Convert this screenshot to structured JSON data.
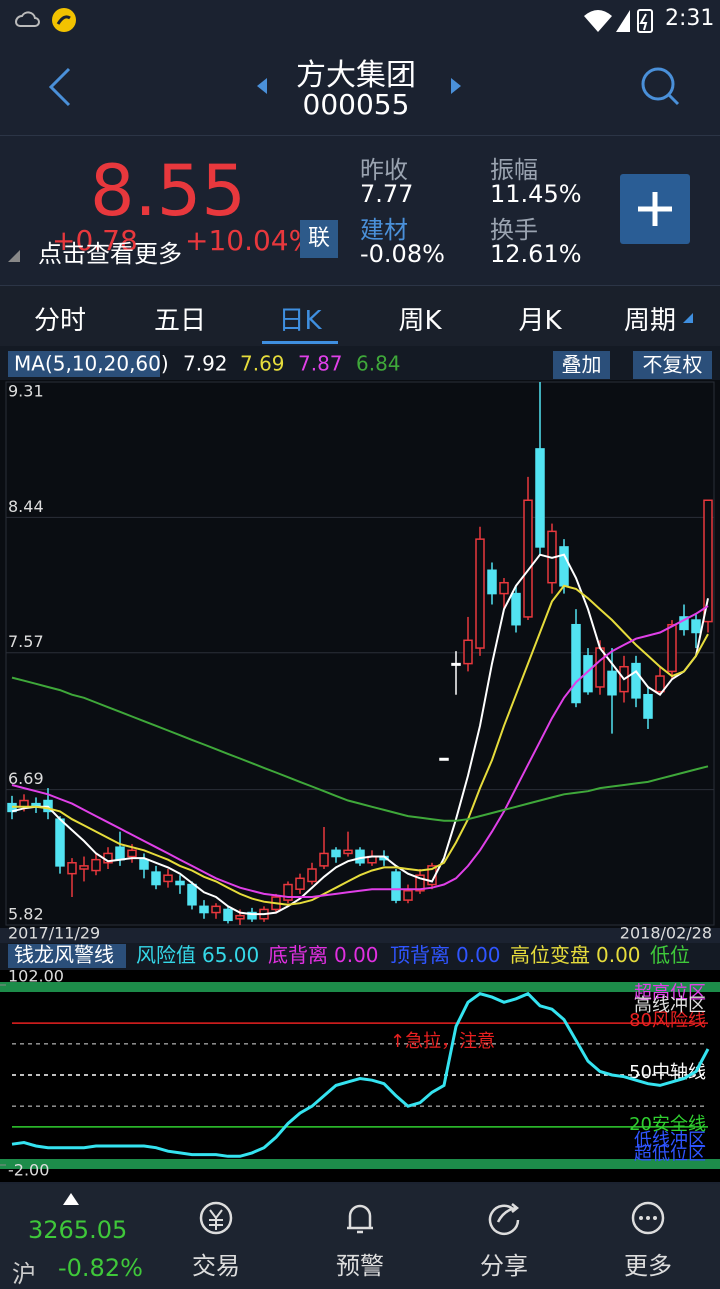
{
  "status_bar": {
    "time": "2:31"
  },
  "header": {
    "name": "方大集团",
    "code": "000055"
  },
  "quote": {
    "price": "8.55",
    "change": "+0.78",
    "change_pct": "+10.04%",
    "link": "联",
    "more": "点击查看更多",
    "stats": [
      {
        "label": "昨收",
        "value": "7.77"
      },
      {
        "label": "振幅",
        "value": "11.45%"
      },
      {
        "label": "建材",
        "value": "-0.08%"
      },
      {
        "label": "换手",
        "value": "12.61%"
      }
    ]
  },
  "tabs": [
    "分时",
    "五日",
    "日K",
    "周K",
    "月K",
    "周期"
  ],
  "active_tab": 2,
  "chart_data": [
    {
      "type": "candlestick",
      "legend_label": "MA(5,10,20,60)",
      "buttons": [
        "叠加",
        "不复权"
      ],
      "x_start": "2017/11/29",
      "x_end": "2018/02/28",
      "ylim": [
        5.82,
        9.31
      ],
      "yticks": [
        9.31,
        8.44,
        7.57,
        6.69,
        5.82
      ],
      "grid": true,
      "up_color": "#e8383d",
      "down_color": "#52e3f2",
      "flat_color": "#ffffff",
      "candles": [
        [
          6.6,
          6.55,
          6.65,
          6.5
        ],
        [
          6.58,
          6.62,
          6.66,
          6.55
        ],
        [
          6.6,
          6.58,
          6.64,
          6.54
        ],
        [
          6.62,
          6.55,
          6.7,
          6.5
        ],
        [
          6.5,
          6.2,
          6.52,
          6.15
        ],
        [
          6.15,
          6.22,
          6.25,
          6.0
        ],
        [
          6.18,
          6.2,
          6.26,
          6.1
        ],
        [
          6.17,
          6.24,
          6.28,
          6.14
        ],
        [
          6.22,
          6.28,
          6.32,
          6.18
        ],
        [
          6.32,
          6.24,
          6.42,
          6.2
        ],
        [
          6.26,
          6.3,
          6.34,
          6.22
        ],
        [
          6.24,
          6.18,
          6.28,
          6.12
        ],
        [
          6.16,
          6.08,
          6.2,
          6.05
        ],
        [
          6.1,
          6.14,
          6.18,
          6.06
        ],
        [
          6.1,
          6.08,
          6.14,
          6.02
        ],
        [
          6.08,
          5.95,
          6.1,
          5.92
        ],
        [
          5.94,
          5.9,
          5.98,
          5.86
        ],
        [
          5.9,
          5.94,
          5.96,
          5.86
        ],
        [
          5.92,
          5.85,
          5.94,
          5.83
        ],
        [
          5.86,
          5.88,
          5.92,
          5.82
        ],
        [
          5.9,
          5.86,
          5.93,
          5.84
        ],
        [
          5.86,
          5.92,
          5.94,
          5.84
        ],
        [
          5.92,
          6.0,
          6.02,
          5.9
        ],
        [
          5.98,
          6.08,
          6.1,
          5.96
        ],
        [
          6.05,
          6.12,
          6.15,
          6.02
        ],
        [
          6.1,
          6.18,
          6.22,
          6.08
        ],
        [
          6.2,
          6.28,
          6.45,
          6.18
        ],
        [
          6.3,
          6.26,
          6.32,
          6.22
        ],
        [
          6.28,
          6.3,
          6.42,
          6.26
        ],
        [
          6.3,
          6.22,
          6.32,
          6.2
        ],
        [
          6.22,
          6.26,
          6.3,
          6.2
        ],
        [
          6.26,
          6.24,
          6.3,
          6.2
        ],
        [
          6.16,
          5.98,
          6.18,
          5.96
        ],
        [
          5.98,
          6.04,
          6.08,
          5.96
        ],
        [
          6.04,
          6.14,
          6.18,
          6.02
        ],
        [
          6.08,
          6.2,
          6.22,
          6.05
        ],
        [
          6.89,
          6.89,
          6.89,
          6.89
        ],
        [
          7.5,
          7.5,
          7.58,
          7.3
        ],
        [
          7.5,
          7.65,
          7.8,
          7.45
        ],
        [
          7.6,
          8.3,
          8.38,
          7.55
        ],
        [
          8.1,
          7.95,
          8.15,
          7.88
        ],
        [
          7.95,
          8.02,
          8.05,
          7.85
        ],
        [
          7.95,
          7.75,
          8.0,
          7.7
        ],
        [
          7.8,
          8.55,
          8.7,
          7.78
        ],
        [
          8.88,
          8.25,
          9.31,
          8.2
        ],
        [
          8.02,
          8.35,
          8.4,
          7.95
        ],
        [
          8.25,
          8.0,
          8.3,
          7.95
        ],
        [
          7.75,
          7.25,
          7.85,
          7.22
        ],
        [
          7.55,
          7.32,
          7.6,
          7.3
        ],
        [
          7.35,
          7.6,
          7.65,
          7.3
        ],
        [
          7.45,
          7.3,
          7.6,
          7.05
        ],
        [
          7.32,
          7.48,
          7.55,
          7.25
        ],
        [
          7.5,
          7.28,
          7.55,
          7.22
        ],
        [
          7.3,
          7.15,
          7.35,
          7.08
        ],
        [
          7.32,
          7.42,
          7.48,
          7.3
        ],
        [
          7.45,
          7.75,
          7.78,
          7.4
        ],
        [
          7.8,
          7.72,
          7.88,
          7.68
        ],
        [
          7.78,
          7.7,
          7.82,
          7.6
        ],
        [
          7.77,
          8.55,
          8.55,
          7.7
        ]
      ],
      "series": [
        {
          "color": "#ffffff",
          "values": [
            6.55,
            6.57,
            6.58,
            6.58,
            6.5,
            6.43,
            6.36,
            6.28,
            6.23,
            6.24,
            6.25,
            6.25,
            6.22,
            6.19,
            6.15,
            6.09,
            6.03,
            6.0,
            5.94,
            5.9,
            5.89,
            5.89,
            5.9,
            5.94,
            5.99,
            6.06,
            6.13,
            6.19,
            6.23,
            6.25,
            6.26,
            6.26,
            6.2,
            6.15,
            6.12,
            6.1,
            6.25,
            6.5,
            6.78,
            7.1,
            7.5,
            7.85,
            8.0,
            8.1,
            8.2,
            8.18,
            8.2,
            8.05,
            7.85,
            7.6,
            7.5,
            7.4,
            7.45,
            7.35,
            7.3,
            7.4,
            7.45,
            7.55,
            7.92
          ]
        },
        {
          "color": "#e6dc3c",
          "values": [
            6.58,
            6.58,
            6.58,
            6.57,
            6.55,
            6.5,
            6.46,
            6.42,
            6.38,
            6.34,
            6.32,
            6.3,
            6.27,
            6.24,
            6.2,
            6.17,
            6.13,
            6.1,
            6.06,
            6.02,
            5.99,
            5.97,
            5.96,
            5.95,
            5.96,
            5.98,
            6.02,
            6.06,
            6.1,
            6.14,
            6.17,
            6.19,
            6.19,
            6.18,
            6.17,
            6.18,
            6.22,
            6.35,
            6.5,
            6.7,
            6.88,
            7.1,
            7.3,
            7.5,
            7.7,
            7.9,
            8.0,
            7.98,
            7.92,
            7.85,
            7.78,
            7.7,
            7.62,
            7.55,
            7.48,
            7.42,
            7.45,
            7.55,
            7.69
          ]
        },
        {
          "color": "#e040e8",
          "values": [
            6.72,
            6.7,
            6.68,
            6.66,
            6.63,
            6.6,
            6.56,
            6.52,
            6.48,
            6.44,
            6.4,
            6.36,
            6.32,
            6.28,
            6.24,
            6.2,
            6.16,
            6.12,
            6.09,
            6.06,
            6.04,
            6.02,
            6.01,
            6.0,
            6.0,
            6.0,
            6.01,
            6.02,
            6.03,
            6.04,
            6.05,
            6.05,
            6.05,
            6.05,
            6.05,
            6.06,
            6.08,
            6.12,
            6.2,
            6.3,
            6.42,
            6.55,
            6.7,
            6.85,
            7.0,
            7.15,
            7.28,
            7.38,
            7.45,
            7.52,
            7.58,
            7.62,
            7.66,
            7.68,
            7.7,
            7.74,
            7.78,
            7.82,
            7.87
          ]
        },
        {
          "color": "#3fa83a",
          "values": [
            7.41,
            7.39,
            7.37,
            7.35,
            7.33,
            7.3,
            7.28,
            7.25,
            7.22,
            7.19,
            7.16,
            7.13,
            7.1,
            7.07,
            7.04,
            7.01,
            6.98,
            6.95,
            6.92,
            6.89,
            6.86,
            6.83,
            6.8,
            6.77,
            6.74,
            6.71,
            6.68,
            6.65,
            6.62,
            6.6,
            6.58,
            6.56,
            6.54,
            6.52,
            6.51,
            6.5,
            6.49,
            6.49,
            6.5,
            6.52,
            6.54,
            6.56,
            6.58,
            6.6,
            6.62,
            6.64,
            6.66,
            6.67,
            6.68,
            6.7,
            6.71,
            6.72,
            6.73,
            6.74,
            6.76,
            6.78,
            6.8,
            6.82,
            6.84
          ]
        }
      ]
    },
    {
      "type": "line",
      "title": "钱龙风警线",
      "stats": [
        {
          "label": "风险值",
          "value": "65.00",
          "color": "#35d8e8"
        },
        {
          "label": "底背离",
          "value": "0.00",
          "color": "#e030e0"
        },
        {
          "label": "顶背离",
          "value": "0.00",
          "color": "#2f55ff"
        },
        {
          "label": "高位变盘",
          "value": "0.00",
          "color": "#e6dc3c"
        },
        {
          "label": "低位",
          "color": "#3fc83a"
        }
      ],
      "ylim": [
        -2,
        102
      ],
      "yticks": [
        {
          "value": 102,
          "label": "102.00"
        },
        {
          "value": -2,
          "label": "-2.00"
        }
      ],
      "levels": [
        {
          "value": 80,
          "label": "80风险线",
          "color": "#e82020"
        },
        {
          "value": 50,
          "label": "50中轴线",
          "color": "#ffffff"
        },
        {
          "value": 20,
          "label": "20安全线",
          "color": "#30d030"
        }
      ],
      "dashed_levels": [
        68,
        32
      ],
      "zones": [
        "超高位区",
        "高线冲区",
        "低线冲区",
        "超低位区"
      ],
      "annotation": "↑急拉，注意",
      "color": "#35e3f0",
      "values": [
        10,
        11,
        9,
        8,
        8,
        8,
        8,
        9,
        9,
        9,
        9,
        9,
        8,
        6,
        5,
        4,
        4,
        4,
        3,
        3,
        5,
        8,
        14,
        22,
        28,
        32,
        38,
        44,
        46,
        48,
        47,
        45,
        38,
        32,
        34,
        40,
        44,
        78,
        92,
        97,
        95,
        92,
        94,
        97,
        90,
        88,
        82,
        70,
        58,
        52,
        50,
        49,
        47,
        45,
        44,
        46,
        48,
        52,
        65
      ]
    }
  ],
  "index": {
    "value": "3265.05",
    "market": "沪",
    "change": "-0.82%"
  },
  "nav": [
    "交易",
    "预警",
    "分享",
    "更多"
  ]
}
